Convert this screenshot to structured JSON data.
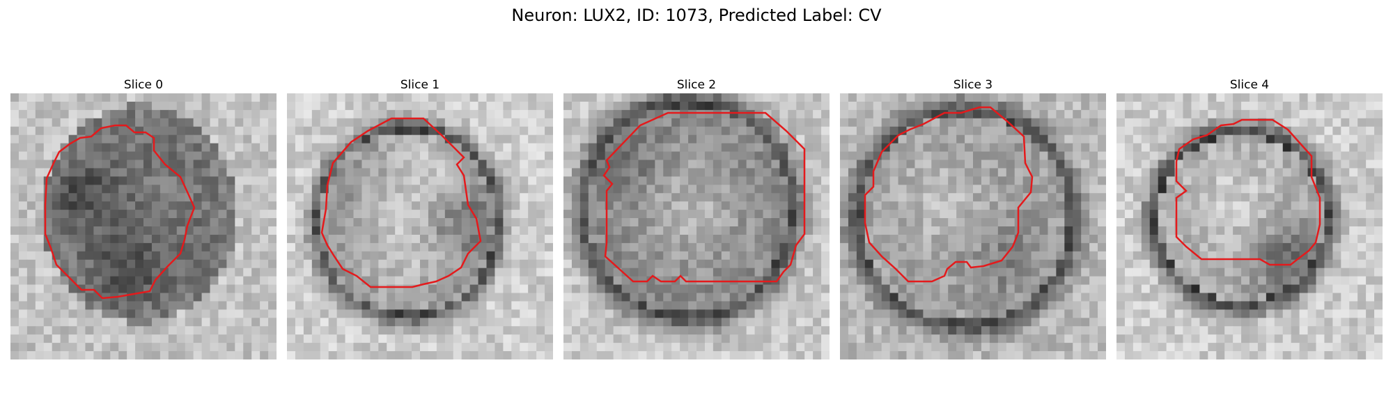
{
  "figure": {
    "title": "Neuron: LUX2, ID: 1073, Predicted Label: CV",
    "contour_color": "#e41a1c"
  },
  "slices": [
    {
      "label": "Slice 0"
    },
    {
      "label": "Slice 1"
    },
    {
      "label": "Slice 2"
    },
    {
      "label": "Slice 3"
    },
    {
      "label": "Slice 4"
    }
  ]
}
